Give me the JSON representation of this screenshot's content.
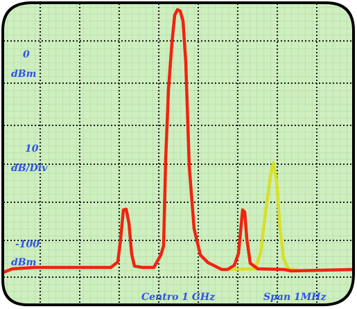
{
  "labels": {
    "ref_level": "0",
    "ref_unit": "dBm",
    "scale_value": "10",
    "scale_unit": "dB/Div",
    "bottom_level": "-100",
    "bottom_unit": "dBm",
    "center": "Centro 1 GHz",
    "span": "Span 1MHz"
  },
  "colors": {
    "screen": "#ceeec0",
    "grid_fine": "#a9dc98",
    "grid_major": "#1a1a1a",
    "trace_main": "#ef2410",
    "trace_secondary": "#d6e02a",
    "text": "#2f52e8",
    "frame": "#000000"
  }
}
